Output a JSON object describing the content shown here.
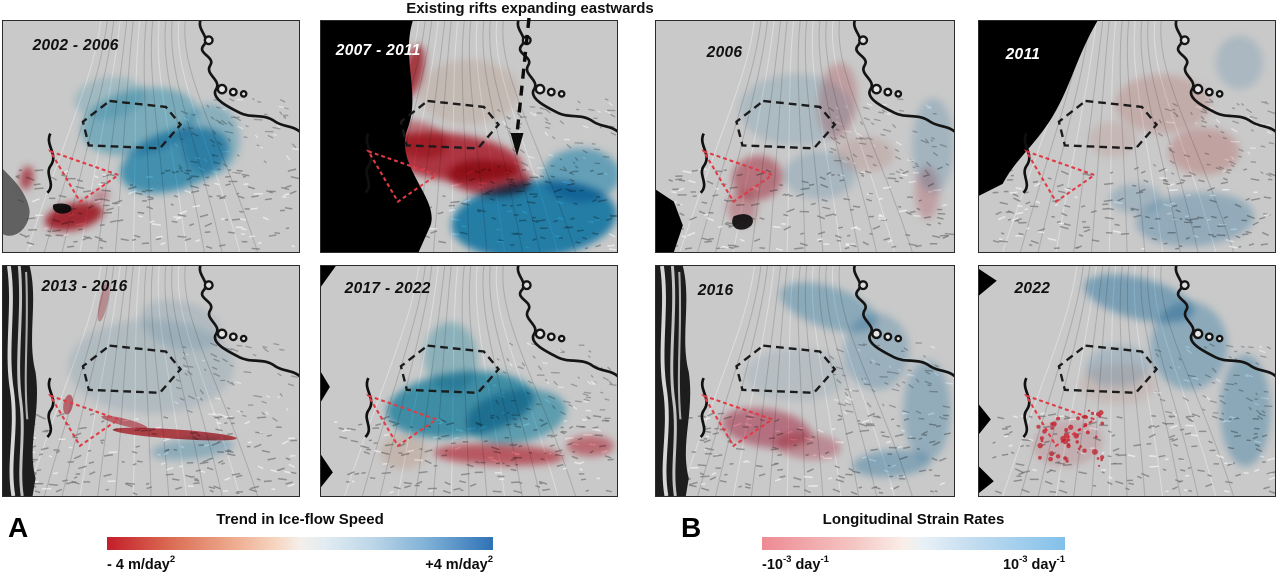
{
  "figure": {
    "annotation": "Existing rifts expanding eastwards",
    "section_a": {
      "letter": "A",
      "panels": [
        {
          "label": "2002 - 2006"
        },
        {
          "label": "2007 - 2011"
        },
        {
          "label": "2013 - 2016"
        },
        {
          "label": "2017 - 2022"
        }
      ],
      "colorbar": {
        "title": "Trend in Ice-flow Speed",
        "min": {
          "pre": "- 4 m/day",
          "sup": "2"
        },
        "max": {
          "pre": "+4 m/day",
          "sup": "2"
        },
        "left_color": "#c41d2a",
        "right_color": "#2e72b5"
      }
    },
    "section_b": {
      "letter": "B",
      "panels": [
        {
          "label": "2006"
        },
        {
          "label": "2011"
        },
        {
          "label": "2016"
        },
        {
          "label": "2022"
        }
      ],
      "colorbar": {
        "title": "Longitudinal Strain Rates",
        "min": {
          "pre": "-10",
          "sup": "-3",
          "mid": " day",
          "sup2": "-1"
        },
        "max": {
          "pre": "10",
          "sup": "-3",
          "mid": " day",
          "sup2": "-1"
        },
        "left_color": "#ee8a93",
        "right_color": "#82c0ea"
      }
    }
  }
}
